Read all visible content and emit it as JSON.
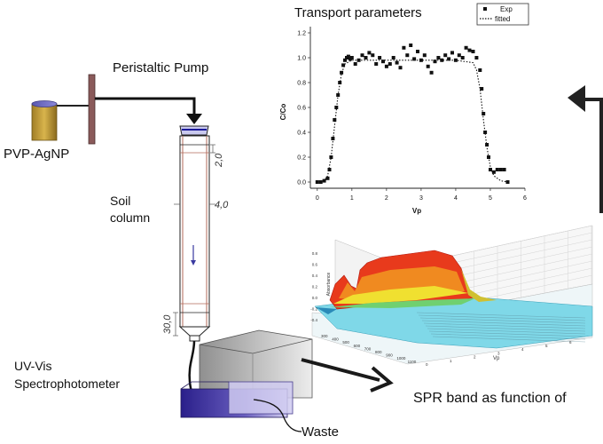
{
  "labels": {
    "pump": "Peristaltic Pump",
    "reservoir": "PVP-AgNP",
    "soil_column": [
      "Soil",
      "column"
    ],
    "spectrophotometer": [
      "UV-Vis",
      "Spectrophotometer"
    ],
    "waste": "Waste",
    "spr_caption": "SPR band as function of"
  },
  "column_dimensions": {
    "top": "2,0",
    "width": "4,0",
    "bottom": "30,0"
  },
  "colors": {
    "reservoir": "#c9a33a",
    "pump_bar": "#8a5a5a",
    "spectro_front": "#4a3aa8",
    "spectro_back": "#b8b0e0",
    "surface_high": "#c81e1e",
    "surface_base": "#7fd8e8"
  },
  "chart_data": [
    {
      "type": "scatter",
      "title": "Transport parameters",
      "xlabel": "Vp",
      "ylabel": "C/Co",
      "xlim": [
        -0.2,
        6.0
      ],
      "ylim": [
        -0.05,
        1.25
      ],
      "xticks": [
        "0",
        "1",
        "2",
        "3",
        "4",
        "5",
        "6"
      ],
      "yticks": [
        "0.0",
        "0.2",
        "0.4",
        "0.6",
        "0.8",
        "1.0",
        "1.2"
      ],
      "legend": {
        "position": "top-right",
        "entries": [
          "Exp",
          "fitted"
        ]
      },
      "series": [
        {
          "name": "Exp",
          "marker": "square",
          "x": [
            0.0,
            0.1,
            0.2,
            0.3,
            0.35,
            0.4,
            0.45,
            0.5,
            0.55,
            0.6,
            0.65,
            0.7,
            0.75,
            0.8,
            0.85,
            0.9,
            0.95,
            1.0,
            1.1,
            1.2,
            1.3,
            1.4,
            1.5,
            1.6,
            1.7,
            1.8,
            1.9,
            2.0,
            2.1,
            2.2,
            2.3,
            2.4,
            2.5,
            2.6,
            2.7,
            2.8,
            2.9,
            3.0,
            3.1,
            3.2,
            3.3,
            3.4,
            3.5,
            3.6,
            3.7,
            3.8,
            3.9,
            4.0,
            4.1,
            4.2,
            4.3,
            4.4,
            4.5,
            4.6,
            4.7,
            4.75,
            4.8,
            4.85,
            4.9,
            4.95,
            5.0,
            5.1,
            5.2,
            5.3,
            5.4,
            5.5
          ],
          "y": [
            0.0,
            0.0,
            0.01,
            0.03,
            0.1,
            0.2,
            0.35,
            0.5,
            0.6,
            0.7,
            0.8,
            0.88,
            0.94,
            0.98,
            1.0,
            1.01,
            0.99,
            1.0,
            0.95,
            0.98,
            1.02,
            1.0,
            1.04,
            1.02,
            0.95,
            1.0,
            0.97,
            0.93,
            0.95,
            1.0,
            0.96,
            0.92,
            1.08,
            1.02,
            1.1,
            0.99,
            1.05,
            0.98,
            1.02,
            0.93,
            0.88,
            0.97,
            1.0,
            0.98,
            1.02,
            0.99,
            1.04,
            0.98,
            1.02,
            1.0,
            1.08,
            1.06,
            1.05,
            1.0,
            0.9,
            0.75,
            0.55,
            0.4,
            0.3,
            0.2,
            0.1,
            0.08,
            0.1,
            0.1,
            0.1,
            0.0
          ]
        },
        {
          "name": "fitted",
          "line": "dotted",
          "x": [
            0.0,
            0.2,
            0.3,
            0.4,
            0.5,
            0.6,
            0.7,
            0.8,
            1.0,
            1.5,
            2.0,
            2.5,
            3.0,
            3.5,
            4.0,
            4.5,
            4.6,
            4.7,
            4.8,
            4.9,
            5.0,
            5.1,
            5.3,
            5.5
          ],
          "y": [
            0.0,
            0.01,
            0.05,
            0.2,
            0.45,
            0.7,
            0.87,
            0.95,
            0.98,
            0.98,
            0.98,
            0.98,
            0.98,
            0.98,
            0.98,
            0.96,
            0.9,
            0.75,
            0.5,
            0.28,
            0.12,
            0.05,
            0.01,
            0.0
          ]
        }
      ]
    },
    {
      "type": "surface",
      "xlabel": "Vp",
      "ylabel": "",
      "zlabel": "Absorbance",
      "wavelength_ticks": [
        "300",
        "400",
        "500",
        "600",
        "700",
        "800",
        "900",
        "1000",
        "1100"
      ],
      "vp_ticks": [
        "0",
        "1",
        "2",
        "3",
        "4",
        "5",
        "6"
      ],
      "z_ticks": [
        "-0.4",
        "-0.2",
        "0.0",
        "0.2",
        "0.4",
        "0.6",
        "0.8"
      ]
    }
  ]
}
